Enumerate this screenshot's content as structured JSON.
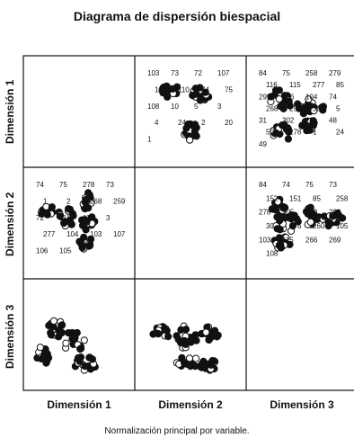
{
  "chart_data": {
    "type": "scatter",
    "title": "Diagrama de dispersión biespacial",
    "footnote": "Normalización principal por variable.",
    "dimensions": [
      "Dimensión 1",
      "Dimensión 2",
      "Dimensión 3"
    ],
    "panels": [
      {
        "row": 0,
        "col": 1,
        "labels": [
          "103",
          "73",
          "72",
          "107",
          "106",
          "110",
          "74",
          "75",
          "108",
          "10",
          "5",
          "3",
          "4",
          "24",
          "2",
          "20",
          "1"
        ]
      },
      {
        "row": 0,
        "col": 2,
        "labels": [
          "84",
          "75",
          "258",
          "279",
          "116",
          "115",
          "277",
          "85",
          "299",
          "306",
          "104",
          "74",
          "268",
          "259",
          "30",
          "5",
          "31",
          "302",
          "20",
          "48",
          "50",
          "278",
          "1",
          "24",
          "49"
        ]
      },
      {
        "row": 1,
        "col": 0,
        "labels": [
          "74",
          "75",
          "278",
          "73",
          "1",
          "2",
          "268",
          "259",
          "72",
          "111",
          "110",
          "3",
          "277",
          "104",
          "103",
          "107",
          "106",
          "105"
        ]
      },
      {
        "row": 1,
        "col": 2,
        "labels": [
          "84",
          "74",
          "75",
          "73",
          "152",
          "151",
          "85",
          "258",
          "278",
          "305",
          "259",
          "299",
          "30",
          "276",
          "260",
          "105",
          "103",
          "115",
          "266",
          "269",
          "108"
        ]
      }
    ]
  }
}
